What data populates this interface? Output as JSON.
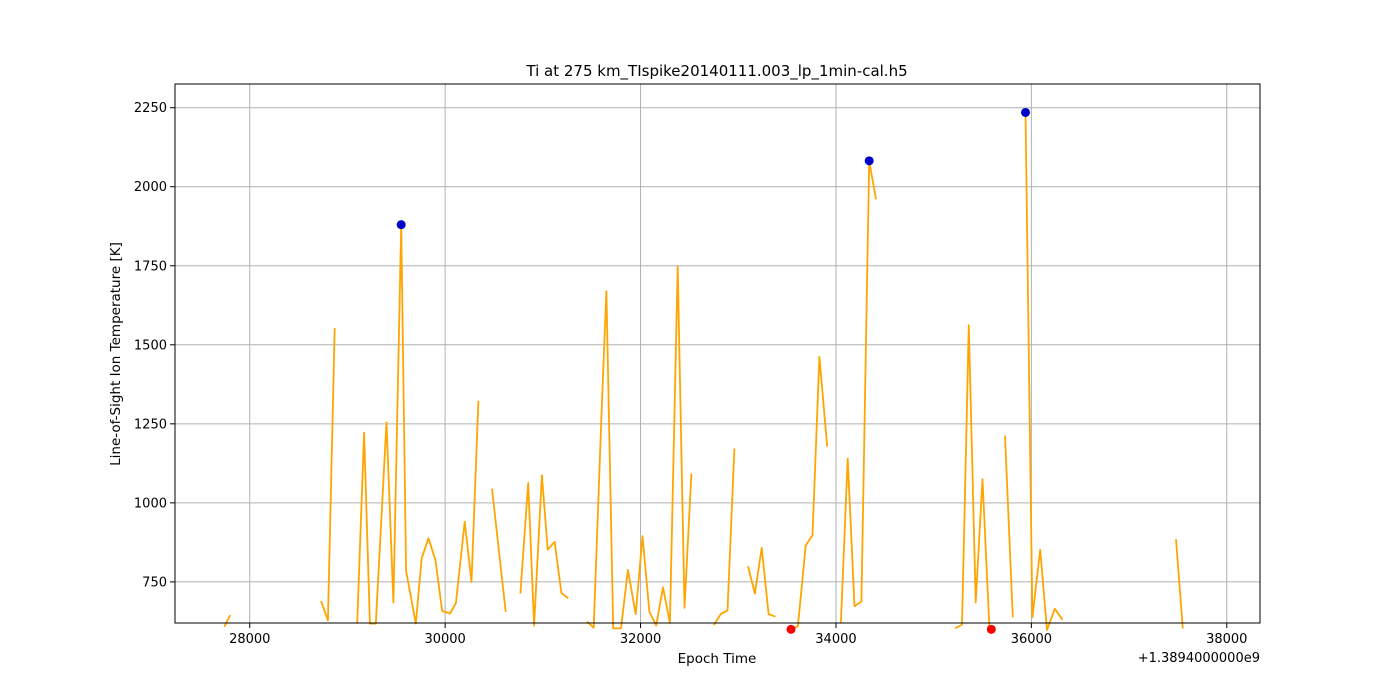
{
  "chart_data": {
    "type": "line",
    "title": "Ti at 275 km_TIspike20140111.003_lp_1min-cal.h5",
    "xlabel": "Epoch Time",
    "ylabel": "Line-of-Sight Ion Temperature [K]",
    "x_offset_label": "+1.3894000000e9",
    "xlim": [
      27235,
      38340
    ],
    "ylim": [
      620,
      2325
    ],
    "xticks": [
      28000,
      30000,
      32000,
      34000,
      36000,
      38000
    ],
    "yticks": [
      750,
      1000,
      1250,
      1500,
      1750,
      2000,
      2250
    ],
    "grid": true,
    "line_color": "#ffa500",
    "series": [
      {
        "segments": [
          [
            [
              27740,
              608
            ],
            [
              27800,
              645
            ]
          ],
          [
            [
              28730,
              690
            ],
            [
              28800,
              628
            ],
            [
              28870,
              1553
            ]
          ],
          [
            [
              29100,
              618
            ],
            [
              29170,
              1222
            ],
            [
              29230,
              618
            ],
            [
              29290,
              618
            ],
            [
              29400,
              1255
            ],
            [
              29470,
              685
            ],
            [
              29550,
              1880
            ],
            [
              29600,
              785
            ],
            [
              29700,
              618
            ],
            [
              29760,
              825
            ],
            [
              29830,
              888
            ],
            [
              29900,
              820
            ],
            [
              29970,
              658
            ],
            [
              30050,
              650
            ],
            [
              30110,
              683
            ],
            [
              30200,
              940
            ],
            [
              30270,
              750
            ],
            [
              30340,
              1323
            ]
          ],
          [
            [
              30480,
              1045
            ],
            [
              30620,
              655
            ]
          ],
          [
            [
              30770,
              713
            ],
            [
              30850,
              1063
            ],
            [
              30910,
              612
            ],
            [
              30990,
              1088
            ],
            [
              31050,
              852
            ],
            [
              31120,
              877
            ],
            [
              31190,
              715
            ],
            [
              31260,
              698
            ]
          ],
          [
            [
              31450,
              625
            ],
            [
              31520,
              605
            ],
            [
              31600,
              1280
            ],
            [
              31650,
              1670
            ],
            [
              31720,
              603
            ],
            [
              31800,
              603
            ],
            [
              31870,
              788
            ],
            [
              31950,
              648
            ],
            [
              32020,
              895
            ],
            [
              32090,
              655
            ],
            [
              32160,
              612
            ],
            [
              32230,
              733
            ],
            [
              32300,
              620
            ],
            [
              32380,
              1748
            ],
            [
              32450,
              668
            ],
            [
              32520,
              1093
            ]
          ],
          [
            [
              32750,
              613
            ],
            [
              32820,
              648
            ],
            [
              32890,
              660
            ],
            [
              32960,
              1172
            ]
          ],
          [
            [
              33100,
              800
            ],
            [
              33170,
              713
            ],
            [
              33240,
              858
            ],
            [
              33310,
              648
            ],
            [
              33380,
              640
            ]
          ],
          [
            [
              33540,
              598
            ],
            [
              33610,
              610
            ],
            [
              33690,
              865
            ],
            [
              33760,
              898
            ],
            [
              33830,
              1462
            ],
            [
              33910,
              1178
            ]
          ],
          [
            [
              34050,
              622
            ],
            [
              34120,
              1140
            ],
            [
              34190,
              673
            ],
            [
              34260,
              688
            ],
            [
              34340,
              2082
            ],
            [
              34410,
              1960
            ]
          ],
          [
            [
              35220,
              603
            ],
            [
              35290,
              615
            ],
            [
              35360,
              1562
            ],
            [
              35430,
              685
            ],
            [
              35500,
              1075
            ],
            [
              35570,
              605
            ]
          ],
          [
            [
              35730,
              1213
            ],
            [
              35810,
              638
            ]
          ],
          [
            [
              35940,
              2235
            ],
            [
              36010,
              638
            ],
            [
              36090,
              852
            ],
            [
              36160,
              598
            ],
            [
              36240,
              665
            ],
            [
              36320,
              630
            ]
          ],
          [
            [
              37480,
              885
            ],
            [
              37550,
              603
            ]
          ]
        ]
      }
    ],
    "markers": {
      "maxima": {
        "color": "#0000cc",
        "points": [
          [
            29550,
            1880
          ],
          [
            34340,
            2082
          ],
          [
            35940,
            2235
          ]
        ]
      },
      "minima": {
        "color": "#ff0000",
        "points": [
          [
            33540,
            600
          ],
          [
            35590,
            600
          ]
        ]
      }
    }
  }
}
